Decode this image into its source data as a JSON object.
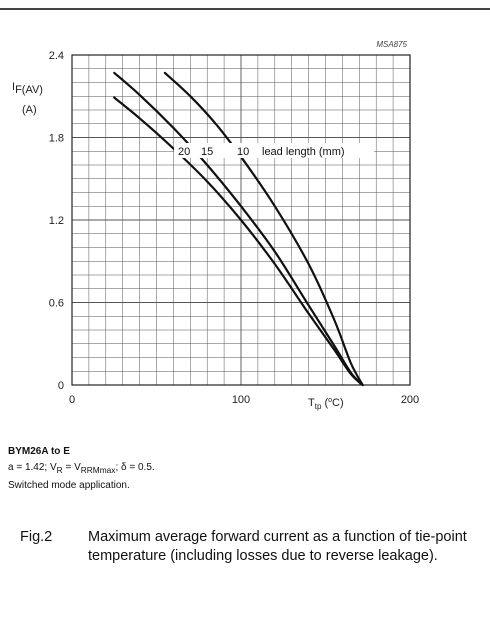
{
  "chart_data": {
    "type": "line",
    "code": "MSA875",
    "ylabel_main": "I",
    "ylabel_sub": "F(AV)",
    "yunit": "(A)",
    "xlabel_main": "T",
    "xlabel_sub": "tp",
    "xunit_open": " (",
    "xunit_deg": "o",
    "xunit_close": "C)",
    "xlim": [
      0,
      200
    ],
    "ylim": [
      0,
      2.4
    ],
    "xticks": [
      {
        "value": 0,
        "label": "0"
      },
      {
        "value": 100,
        "label": "100"
      },
      {
        "value": 200,
        "label": "200"
      }
    ],
    "yticks": [
      {
        "value": 0,
        "label": "0"
      },
      {
        "value": 0.6,
        "label": "0.6"
      },
      {
        "value": 1.2,
        "label": "1.2"
      },
      {
        "value": 1.8,
        "label": "1.8"
      },
      {
        "value": 2.4,
        "label": "2.4"
      }
    ],
    "grid": true,
    "series": [
      {
        "name": "20",
        "x": [
          25,
          40,
          60,
          80,
          100,
          120,
          140,
          155,
          165,
          172
        ],
        "y": [
          2.09,
          1.94,
          1.72,
          1.48,
          1.2,
          0.88,
          0.52,
          0.26,
          0.08,
          0
        ]
      },
      {
        "name": "15",
        "x": [
          25,
          40,
          60,
          80,
          100,
          120,
          140,
          155,
          165,
          172
        ],
        "y": [
          2.27,
          2.11,
          1.87,
          1.6,
          1.3,
          0.97,
          0.58,
          0.29,
          0.09,
          0
        ]
      },
      {
        "name": "10",
        "x": [
          55,
          70,
          85,
          100,
          120,
          140,
          155,
          165,
          172
        ],
        "y": [
          2.27,
          2.1,
          1.9,
          1.66,
          1.3,
          0.88,
          0.48,
          0.16,
          0
        ]
      }
    ],
    "annotation_suffix": "lead length (mm)"
  },
  "notes": {
    "product": "BYM26A to E",
    "line1_a": "a = 1.42; V",
    "line1_r": "R",
    "line1_eq": " = V",
    "line1_rrm": "RRMmax",
    "line1_delta": "; δ = 0.5.",
    "line2": "Switched mode application."
  },
  "caption": {
    "label": "Fig.2",
    "text": "Maximum average forward current as a function of tie-point temperature (including losses due to reverse leakage)."
  }
}
